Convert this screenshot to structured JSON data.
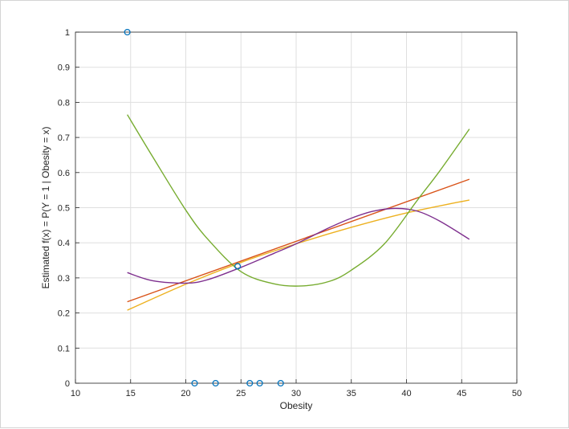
{
  "chart_data": {
    "type": "line",
    "xlabel": "Obesity",
    "ylabel": "Estimated f(x) = P(Y = 1 | Obesity = x)",
    "xlim": [
      10,
      50
    ],
    "ylim": [
      0,
      1
    ],
    "xticks": [
      10,
      15,
      20,
      25,
      30,
      35,
      40,
      45,
      50
    ],
    "yticks": [
      0,
      0.1,
      0.2,
      0.3,
      0.4,
      0.5,
      0.6,
      0.7,
      0.8,
      0.9,
      1
    ],
    "grid": true,
    "series": [
      {
        "type": "scatter",
        "color": "#0072bd",
        "marker": "circle",
        "x": [
          14.7,
          20.8,
          22.7,
          24.7,
          25.8,
          26.7,
          28.6
        ],
        "y": [
          1,
          0,
          0,
          0.333,
          0,
          0,
          0
        ]
      },
      {
        "type": "line",
        "color": "#d95319",
        "x": [
          14.7,
          45.7
        ],
        "y": [
          0.232,
          0.581
        ]
      },
      {
        "type": "line",
        "color": "#edb120",
        "x": [
          14.7,
          20,
          25,
          30,
          35,
          40,
          45.7
        ],
        "y": [
          0.208,
          0.282,
          0.344,
          0.397,
          0.444,
          0.485,
          0.522
        ]
      },
      {
        "type": "line",
        "color": "#7e2f8e",
        "x": [
          14.7,
          17,
          20,
          22,
          25,
          28,
          30,
          33,
          35,
          37,
          39,
          41,
          43,
          45.7
        ],
        "y": [
          0.315,
          0.292,
          0.285,
          0.295,
          0.33,
          0.37,
          0.397,
          0.443,
          0.47,
          0.49,
          0.498,
          0.49,
          0.462,
          0.41
        ]
      },
      {
        "type": "line",
        "color": "#77ac30",
        "x": [
          14.7,
          17,
          20,
          22,
          25,
          28,
          30.5,
          33,
          35,
          38,
          41,
          43,
          45.7
        ],
        "y": [
          0.765,
          0.645,
          0.493,
          0.41,
          0.318,
          0.283,
          0.277,
          0.29,
          0.322,
          0.397,
          0.522,
          0.604,
          0.724
        ]
      }
    ]
  }
}
